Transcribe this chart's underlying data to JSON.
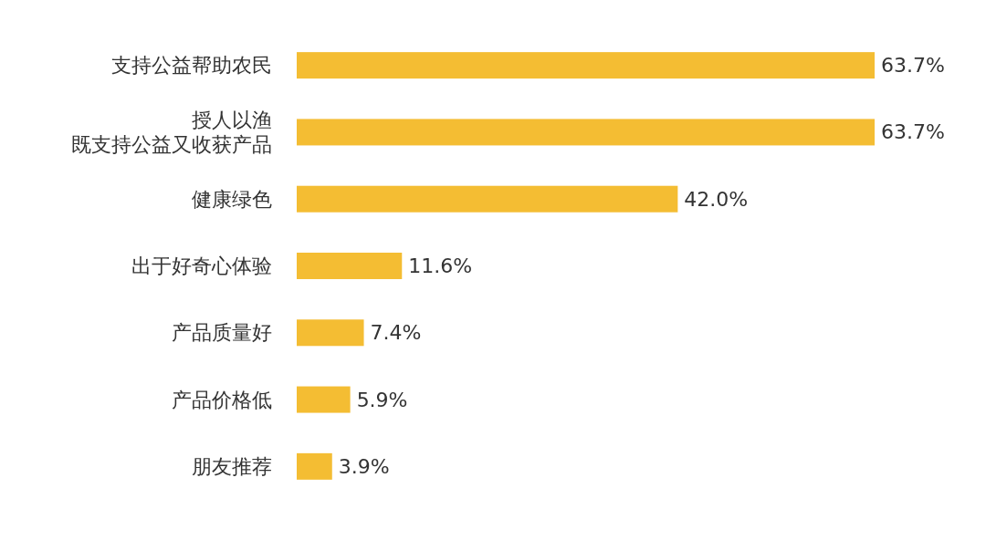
{
  "chart_data": {
    "type": "bar",
    "orientation": "horizontal",
    "categories": [
      "支持公益帮助农民",
      "授人以渔既支持公益又收获产品",
      "健康绿色",
      "出于好奇心体验",
      "产品质量好",
      "产品价格低",
      "朋友推荐"
    ],
    "values": [
      63.7,
      63.7,
      42.0,
      11.6,
      7.4,
      5.9,
      3.9
    ],
    "value_labels": [
      "63.7%",
      "63.7%",
      "42.0%",
      "11.6%",
      "7.4%",
      "5.9%",
      "3.9%"
    ],
    "color": "#f4bd33"
  }
}
